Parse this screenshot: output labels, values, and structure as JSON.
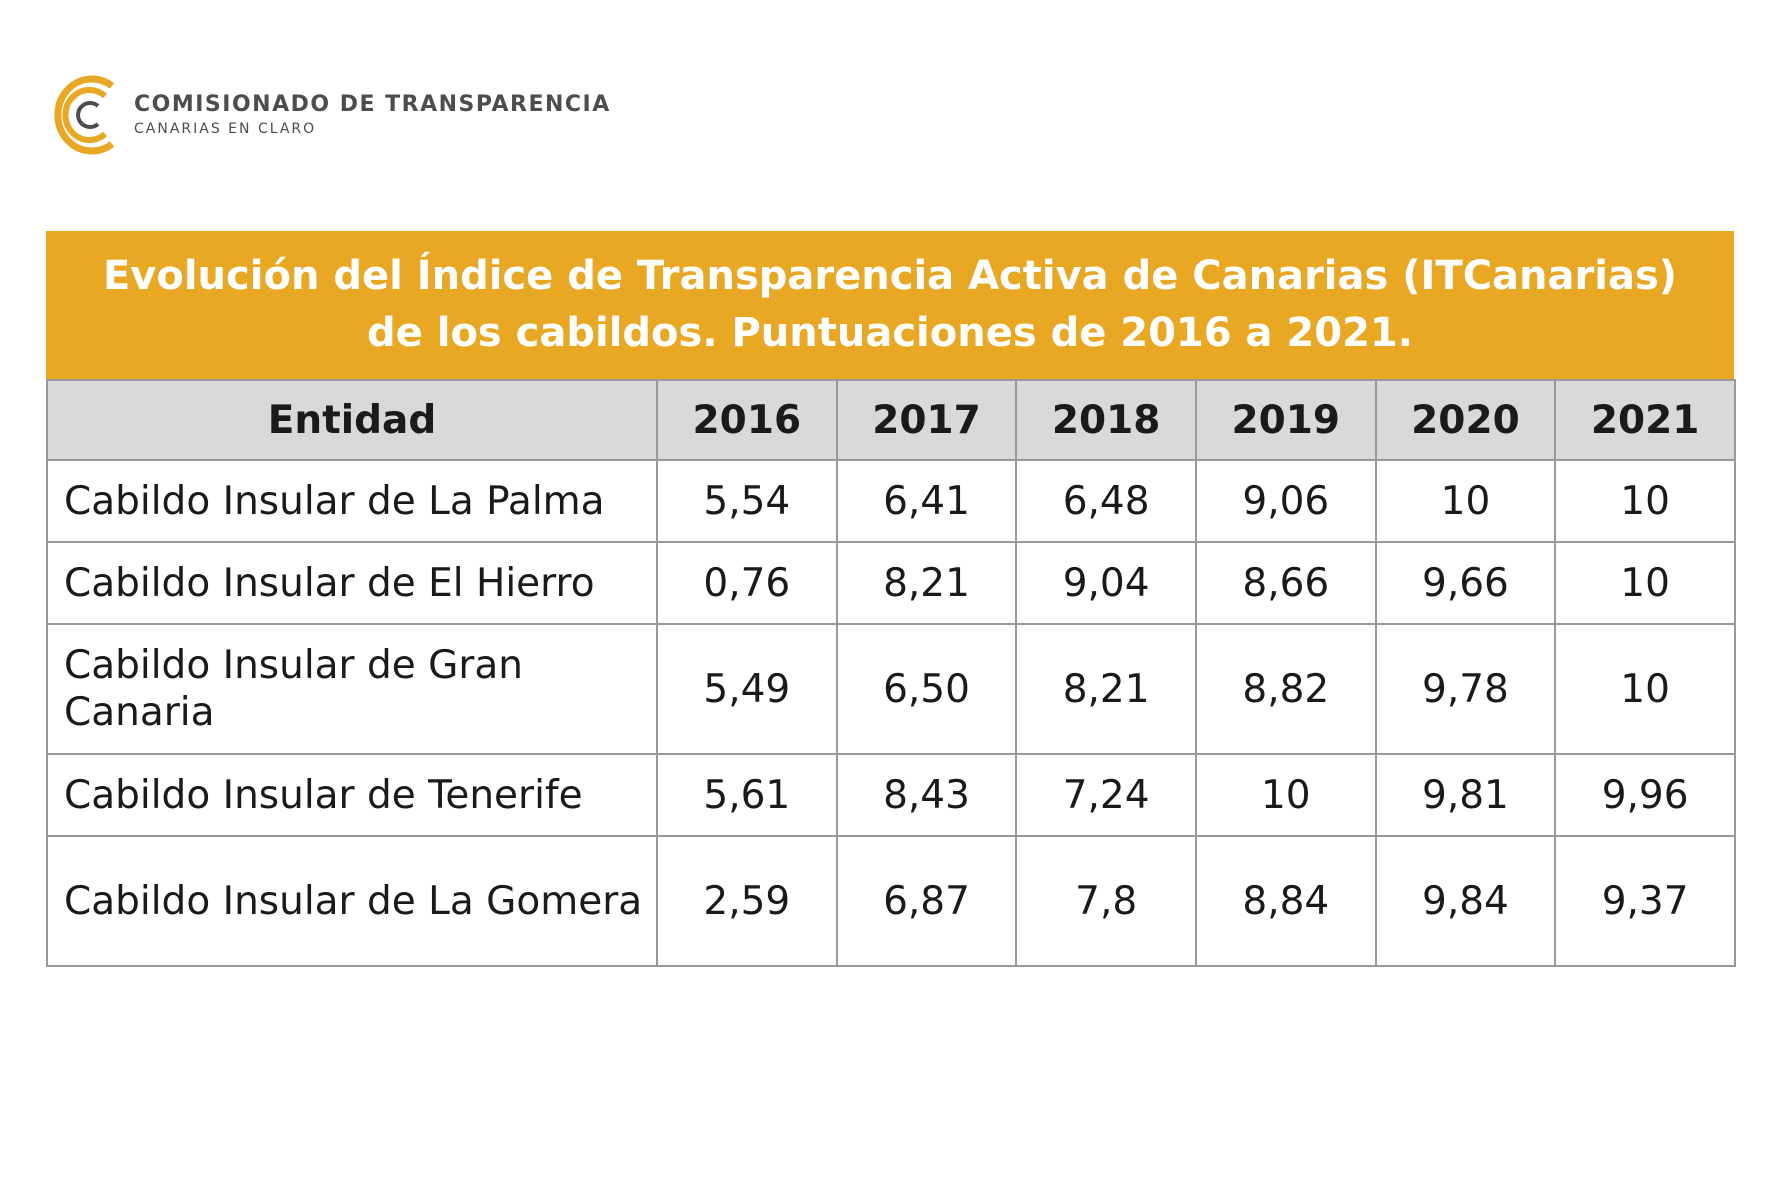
{
  "logo": {
    "title": "COMISIONADO DE TRANSPARENCIA",
    "subtitle": "CANARIAS EN CLARO",
    "color": "#e8a823"
  },
  "table": {
    "title": "Evolución del Índice de Transparencia Activa de Canarias (ITCanarias) de los cabildos. Puntuaciones de 2016 a 2021.",
    "banner_color": "#e8a823",
    "header_color": "#d9d9d9",
    "headers": [
      "Entidad",
      "2016",
      "2017",
      "2018",
      "2019",
      "2020",
      "2021"
    ],
    "rows": [
      [
        "Cabildo Insular de La Palma",
        "5,54",
        "6,41",
        "6,48",
        "9,06",
        "10",
        "10"
      ],
      [
        "Cabildo Insular de El Hierro",
        "0,76",
        "8,21",
        "9,04",
        "8,66",
        "9,66",
        "10"
      ],
      [
        "Cabildo Insular de Gran Canaria",
        "5,49",
        "6,50",
        "8,21",
        "8,82",
        "9,78",
        "10"
      ],
      [
        "Cabildo Insular de Tenerife",
        "5,61",
        "8,43",
        "7,24",
        "10",
        "9,81",
        "9,96"
      ],
      [
        "Cabildo Insular de La Gomera",
        "2,59",
        "6,87",
        "7,8",
        "8,84",
        "9,84",
        "9,37"
      ]
    ]
  }
}
